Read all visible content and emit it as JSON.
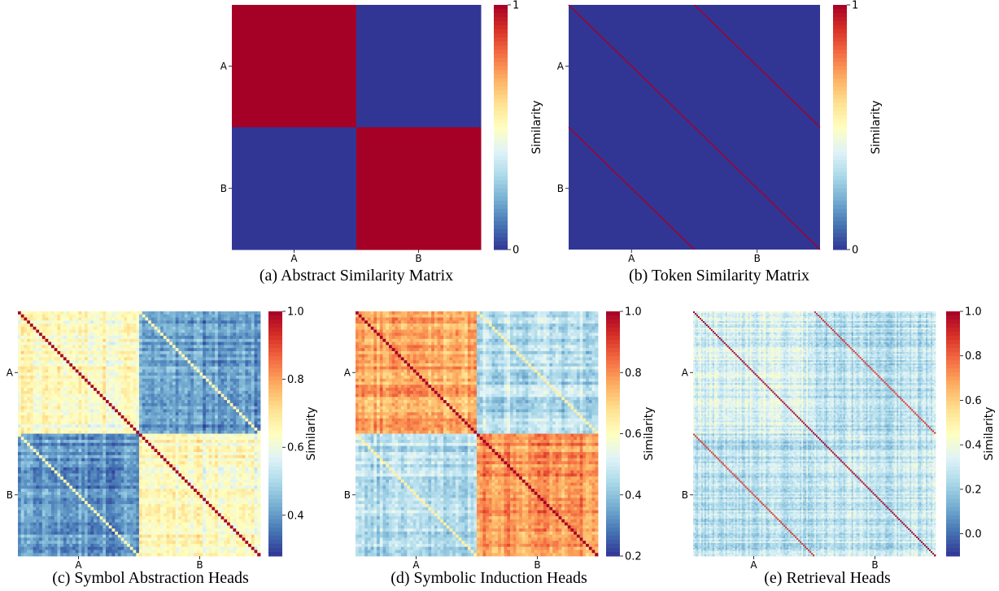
{
  "chart_data": [
    {
      "type": "heatmap",
      "panel": "a",
      "caption": "(a)  Abstract Similarity Matrix",
      "pattern": "abstract",
      "tick_labels": [
        "A",
        "B"
      ],
      "colorbar": {
        "label": "Similarity",
        "min": 0,
        "max": 1,
        "ticks": [
          0,
          1
        ]
      },
      "values": [
        [
          1,
          0
        ],
        [
          0,
          1
        ]
      ]
    },
    {
      "type": "heatmap",
      "panel": "b",
      "caption": "(b)  Token Similarity Matrix",
      "pattern": "token",
      "tick_labels": [
        "A",
        "B"
      ],
      "colorbar": {
        "label": "Similarity",
        "min": 0,
        "max": 1,
        "ticks": [
          0,
          1
        ]
      },
      "base_value": 0,
      "diagonal_value": 1
    },
    {
      "type": "heatmap",
      "panel": "c",
      "caption": "(c)  Symbol Abstraction Heads",
      "pattern": "noisy",
      "grid_size": 80,
      "tick_labels": [
        "A",
        "B"
      ],
      "colorbar": {
        "label": "Similarity",
        "min": 0.28,
        "max": 1.0,
        "ticks": [
          0.4,
          0.6,
          0.8,
          1.0
        ]
      },
      "block_means": {
        "AA": 0.64,
        "BB": 0.64,
        "AB": 0.4,
        "BA": 0.4
      },
      "diagonal_value": 1.0,
      "offdiagonal_value": 0.66,
      "noise": 0.07
    },
    {
      "type": "heatmap",
      "panel": "d",
      "caption": "(d)  Symbolic Induction Heads",
      "pattern": "noisy",
      "grid_size": 80,
      "tick_labels": [
        "A",
        "B"
      ],
      "colorbar": {
        "label": "Similarity",
        "min": 0.2,
        "max": 1.0,
        "ticks": [
          0.2,
          0.4,
          0.6,
          0.8,
          1.0
        ]
      },
      "block_means": {
        "AA": 0.76,
        "BB": 0.8,
        "AB": 0.46,
        "BA": 0.46
      },
      "diagonal_value": 1.0,
      "offdiagonal_value": 0.64,
      "noise": 0.08
    },
    {
      "type": "heatmap",
      "panel": "e",
      "caption": "(e)  Retrieval Heads",
      "pattern": "noisy",
      "grid_size": 150,
      "tick_labels": [
        "A",
        "B"
      ],
      "colorbar": {
        "label": "Similarity",
        "min": -0.1,
        "max": 1.0,
        "ticks": [
          0.0,
          0.2,
          0.4,
          0.6,
          0.8,
          1.0
        ]
      },
      "block_means": {
        "AA": 0.33,
        "BB": 0.28,
        "AB": 0.26,
        "BA": 0.26
      },
      "diagonal_value": 1.0,
      "offdiagonal_value": 0.88,
      "noise": 0.1
    }
  ],
  "colormap": [
    "#313695",
    "#4575b4",
    "#74add1",
    "#abd9e9",
    "#e0f3f8",
    "#ffffbf",
    "#fee090",
    "#fdae61",
    "#f46d43",
    "#d73027",
    "#a50026"
  ]
}
